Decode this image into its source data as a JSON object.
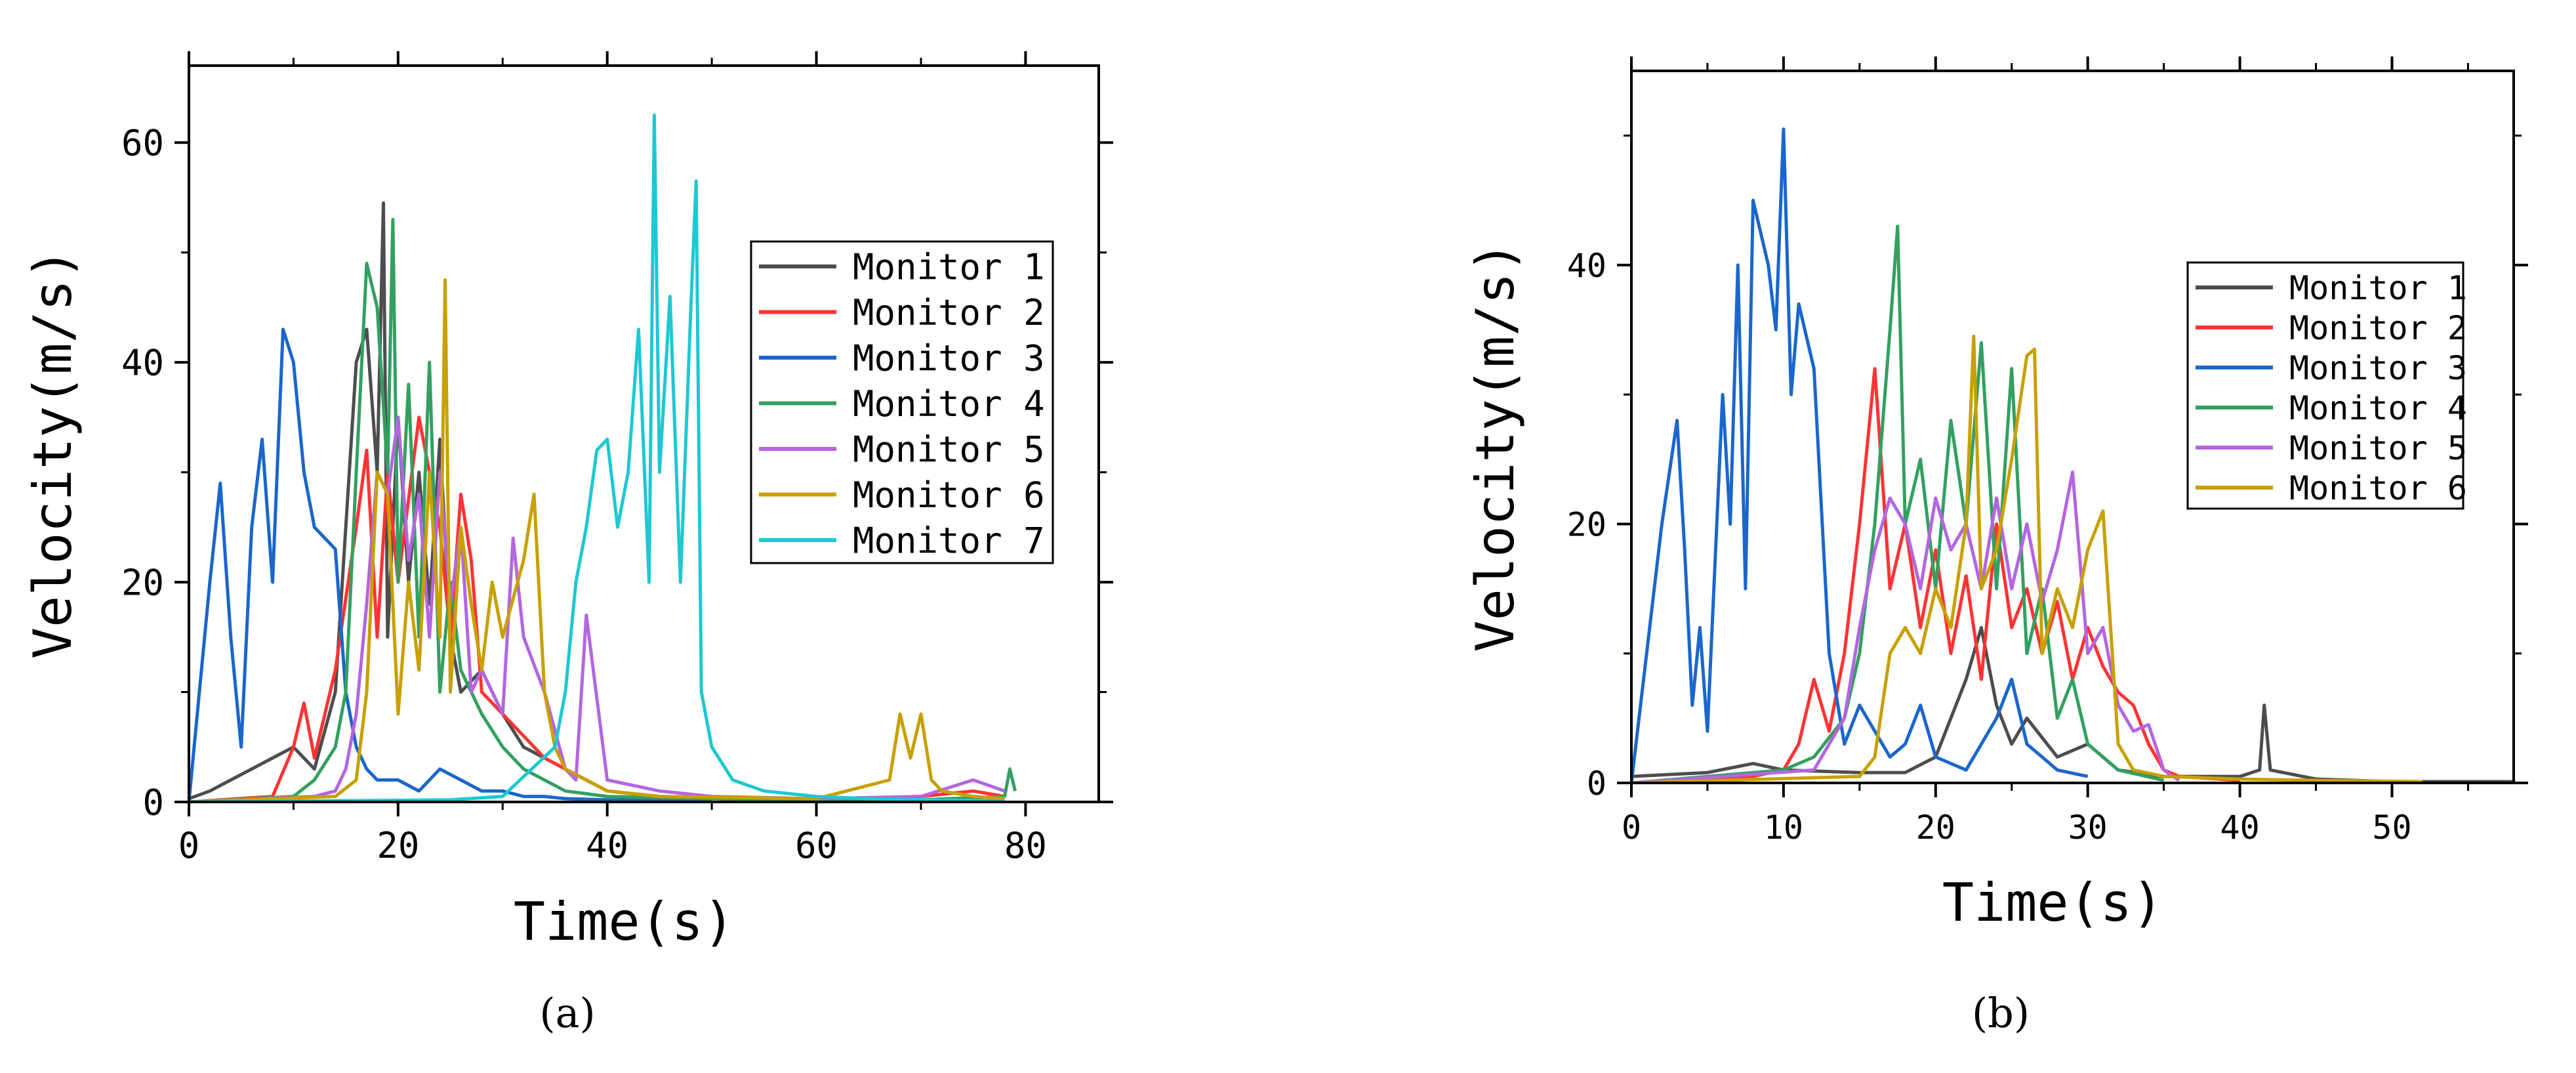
{
  "chart_data": [
    {
      "type": "line",
      "panel_label": "a",
      "xlabel": "Time(s)",
      "ylabel": "Velocity(m/s)",
      "xlim": [
        0,
        87
      ],
      "ylim": [
        0,
        67
      ],
      "xticks": [
        0,
        20,
        40,
        60,
        80
      ],
      "yticks": [
        0,
        20,
        40,
        60
      ],
      "legend_position": "upper-right",
      "series": [
        {
          "name": "Monitor 1",
          "color": "#4d4d4d",
          "x": [
            0,
            2,
            4,
            6,
            8,
            10,
            12,
            14,
            16,
            17,
            18,
            18.6,
            19,
            20,
            21,
            22,
            23,
            24,
            25,
            26,
            28,
            30,
            32,
            34,
            36,
            38,
            40,
            45,
            50,
            55
          ],
          "y": [
            0.3,
            1,
            2,
            3,
            4,
            5,
            3,
            10,
            40,
            43,
            30,
            54.5,
            15,
            35,
            20,
            30,
            18,
            33,
            15,
            10,
            12,
            8,
            5,
            4,
            3,
            2,
            1,
            0.5,
            0.3,
            0.2
          ]
        },
        {
          "name": "Monitor 2",
          "color": "#ff3333",
          "x": [
            0,
            8,
            10,
            11,
            12,
            14,
            16,
            17,
            18,
            19,
            20,
            22,
            24,
            25,
            26,
            27,
            28,
            30,
            32,
            34,
            36,
            38,
            40,
            45,
            50,
            60,
            70,
            75,
            78
          ],
          "y": [
            0,
            0.5,
            5,
            9,
            4,
            12,
            25,
            32,
            15,
            30,
            20,
            35,
            25,
            15,
            28,
            22,
            10,
            8,
            6,
            4,
            3,
            2,
            1,
            0.5,
            0.3,
            0.2,
            0.5,
            1,
            0.5
          ]
        },
        {
          "name": "Monitor 3",
          "color": "#1a66cc",
          "x": [
            0,
            1,
            2,
            3,
            4,
            5,
            6,
            7,
            8,
            9,
            10,
            11,
            12,
            13,
            14,
            15,
            16,
            17,
            18,
            20,
            22,
            24,
            26,
            28,
            30,
            32,
            34,
            36,
            40,
            50
          ],
          "y": [
            0,
            10,
            20,
            29,
            15,
            5,
            25,
            33,
            20,
            43,
            40,
            30,
            25,
            24,
            23,
            10,
            5,
            3,
            2,
            2,
            1,
            3,
            2,
            1,
            1,
            0.5,
            0.5,
            0.3,
            0.2,
            0.1
          ]
        },
        {
          "name": "Monitor 4",
          "color": "#33a060",
          "x": [
            0,
            10,
            12,
            14,
            15,
            16,
            17,
            18,
            19,
            19.5,
            20,
            21,
            22,
            23,
            24,
            25,
            26,
            28,
            30,
            32,
            34,
            36,
            40,
            50,
            60,
            70,
            78,
            78.5,
            79
          ],
          "y": [
            0,
            0.5,
            2,
            5,
            10,
            30,
            49,
            45,
            30,
            53,
            20,
            38,
            15,
            40,
            10,
            20,
            12,
            8,
            5,
            3,
            2,
            1,
            0.5,
            0.3,
            0.2,
            0.2,
            0.5,
            3,
            1
          ]
        },
        {
          "name": "Monitor 5",
          "color": "#b366e0",
          "x": [
            0,
            12,
            14,
            15,
            16,
            17,
            18,
            19,
            20,
            21,
            22,
            23,
            24,
            25,
            26,
            27,
            28,
            30,
            31,
            32,
            34,
            36,
            37,
            38,
            40,
            45,
            50,
            60,
            70,
            75,
            78
          ],
          "y": [
            0,
            0.5,
            1,
            3,
            8,
            18,
            30,
            28,
            35,
            22,
            28,
            15,
            30,
            18,
            25,
            10,
            12,
            8,
            24,
            15,
            10,
            3,
            2,
            17,
            2,
            1,
            0.5,
            0.3,
            0.5,
            2,
            1
          ]
        },
        {
          "name": "Monitor 6",
          "color": "#c8a000",
          "x": [
            0,
            14,
            16,
            17,
            18,
            19,
            20,
            21,
            22,
            23,
            24,
            24.5,
            25,
            26,
            27,
            28,
            29,
            30,
            32,
            33,
            34,
            35,
            36,
            38,
            40,
            45,
            60,
            67,
            68,
            69,
            70,
            71,
            72,
            75,
            78
          ],
          "y": [
            0,
            0.5,
            2,
            10,
            30,
            28,
            8,
            20,
            12,
            30,
            15,
            47.5,
            10,
            25,
            18,
            12,
            20,
            15,
            22,
            28,
            10,
            5,
            3,
            2,
            1,
            0.5,
            0.3,
            2,
            8,
            4,
            8,
            2,
            1,
            0.5,
            0.3
          ]
        },
        {
          "name": "Monitor 7",
          "color": "#1ec8d2",
          "x": [
            0,
            25,
            30,
            35,
            36,
            37,
            38,
            39,
            40,
            41,
            42,
            43,
            44,
            44.5,
            45,
            46,
            47,
            48,
            48.5,
            49,
            50,
            52,
            55,
            60,
            65,
            70,
            78
          ],
          "y": [
            0,
            0.2,
            0.5,
            5,
            10,
            20,
            25,
            32,
            33,
            25,
            30,
            43,
            20,
            62.5,
            30,
            46,
            20,
            45,
            56.5,
            10,
            5,
            2,
            1,
            0.5,
            0.3,
            0.2,
            0.1
          ]
        }
      ]
    },
    {
      "type": "line",
      "panel_label": "b",
      "xlabel": "Time(s)",
      "ylabel": "Velocity(m/s)",
      "xlim": [
        0,
        58
      ],
      "ylim": [
        0,
        55
      ],
      "xticks": [
        0,
        10,
        20,
        30,
        40,
        50
      ],
      "yticks": [
        0,
        20,
        40
      ],
      "legend_position": "upper-right",
      "series": [
        {
          "name": "Monitor 1",
          "color": "#4d4d4d",
          "x": [
            0,
            5,
            8,
            10,
            15,
            18,
            20,
            22,
            23,
            24,
            25,
            26,
            28,
            30,
            32,
            35,
            38,
            40,
            41.3,
            41.6,
            42,
            45,
            50,
            52,
            58
          ],
          "y": [
            0.5,
            0.8,
            1.5,
            1,
            0.8,
            0.8,
            2,
            8,
            12,
            6,
            3,
            5,
            2,
            3,
            1,
            0.5,
            0.5,
            0.5,
            1,
            6,
            1,
            0.3,
            0.1,
            0.1,
            0.1
          ]
        },
        {
          "name": "Monitor 2",
          "color": "#ff3333",
          "x": [
            0,
            8,
            10,
            11,
            12,
            13,
            14,
            15,
            16,
            17,
            18,
            19,
            20,
            21,
            22,
            23,
            24,
            25,
            26,
            27,
            28,
            29,
            30,
            31,
            32,
            33,
            34,
            35,
            36,
            40
          ],
          "y": [
            0,
            0.5,
            1,
            3,
            8,
            4,
            10,
            20,
            32,
            15,
            20,
            12,
            18,
            10,
            16,
            8,
            20,
            12,
            15,
            10,
            14,
            8,
            12,
            9,
            7,
            6,
            3,
            1,
            0.5,
            0.2
          ]
        },
        {
          "name": "Monitor 3",
          "color": "#1a66cc",
          "x": [
            0,
            1,
            2,
            3,
            3.5,
            4,
            4.5,
            5,
            6,
            6.5,
            7,
            7.5,
            8,
            9,
            9.5,
            10,
            10.5,
            11,
            12,
            13,
            14,
            15,
            16,
            17,
            18,
            19,
            20,
            22,
            24,
            25,
            26,
            27,
            28,
            30
          ],
          "y": [
            0,
            10,
            20,
            28,
            18,
            6,
            12,
            4,
            30,
            20,
            40,
            15,
            45,
            40,
            35,
            50.5,
            30,
            37,
            32,
            10,
            3,
            6,
            4,
            2,
            3,
            6,
            2,
            1,
            5,
            8,
            3,
            2,
            1,
            0.5
          ]
        },
        {
          "name": "Monitor 4",
          "color": "#33a060",
          "x": [
            0,
            10,
            12,
            14,
            15,
            16,
            17,
            17.5,
            18,
            19,
            20,
            21,
            22,
            23,
            24,
            25,
            26,
            27,
            28,
            29,
            30,
            31,
            32,
            35
          ],
          "y": [
            0,
            1,
            2,
            5,
            10,
            20,
            35,
            43,
            20,
            25,
            15,
            28,
            20,
            34,
            15,
            32,
            10,
            15,
            5,
            8,
            3,
            2,
            1,
            0.2
          ]
        },
        {
          "name": "Monitor 5",
          "color": "#b366e0",
          "x": [
            0,
            12,
            14,
            15,
            16,
            17,
            18,
            19,
            20,
            21,
            22,
            23,
            24,
            25,
            26,
            27,
            28,
            29,
            30,
            31,
            32,
            33,
            34,
            35,
            36
          ],
          "y": [
            0,
            1,
            5,
            12,
            18,
            22,
            20,
            15,
            22,
            18,
            20,
            15,
            22,
            15,
            20,
            14,
            18,
            24,
            10,
            12,
            6,
            4,
            4.5,
            1,
            0.2
          ]
        },
        {
          "name": "Monitor 6",
          "color": "#c8a000",
          "x": [
            0,
            15,
            16,
            17,
            18,
            19,
            20,
            21,
            22,
            22.5,
            23,
            24,
            25,
            26,
            26.5,
            27,
            28,
            29,
            30,
            31,
            32,
            33,
            35,
            40,
            45,
            52
          ],
          "y": [
            0,
            0.5,
            2,
            10,
            12,
            10,
            15,
            12,
            20,
            34.5,
            15,
            18,
            25,
            33,
            33.5,
            10,
            15,
            12,
            18,
            21,
            3,
            1,
            0.5,
            0.3,
            0.2,
            0.1
          ]
        }
      ]
    }
  ],
  "captions": {
    "a": "(a)",
    "b": "(b)"
  }
}
